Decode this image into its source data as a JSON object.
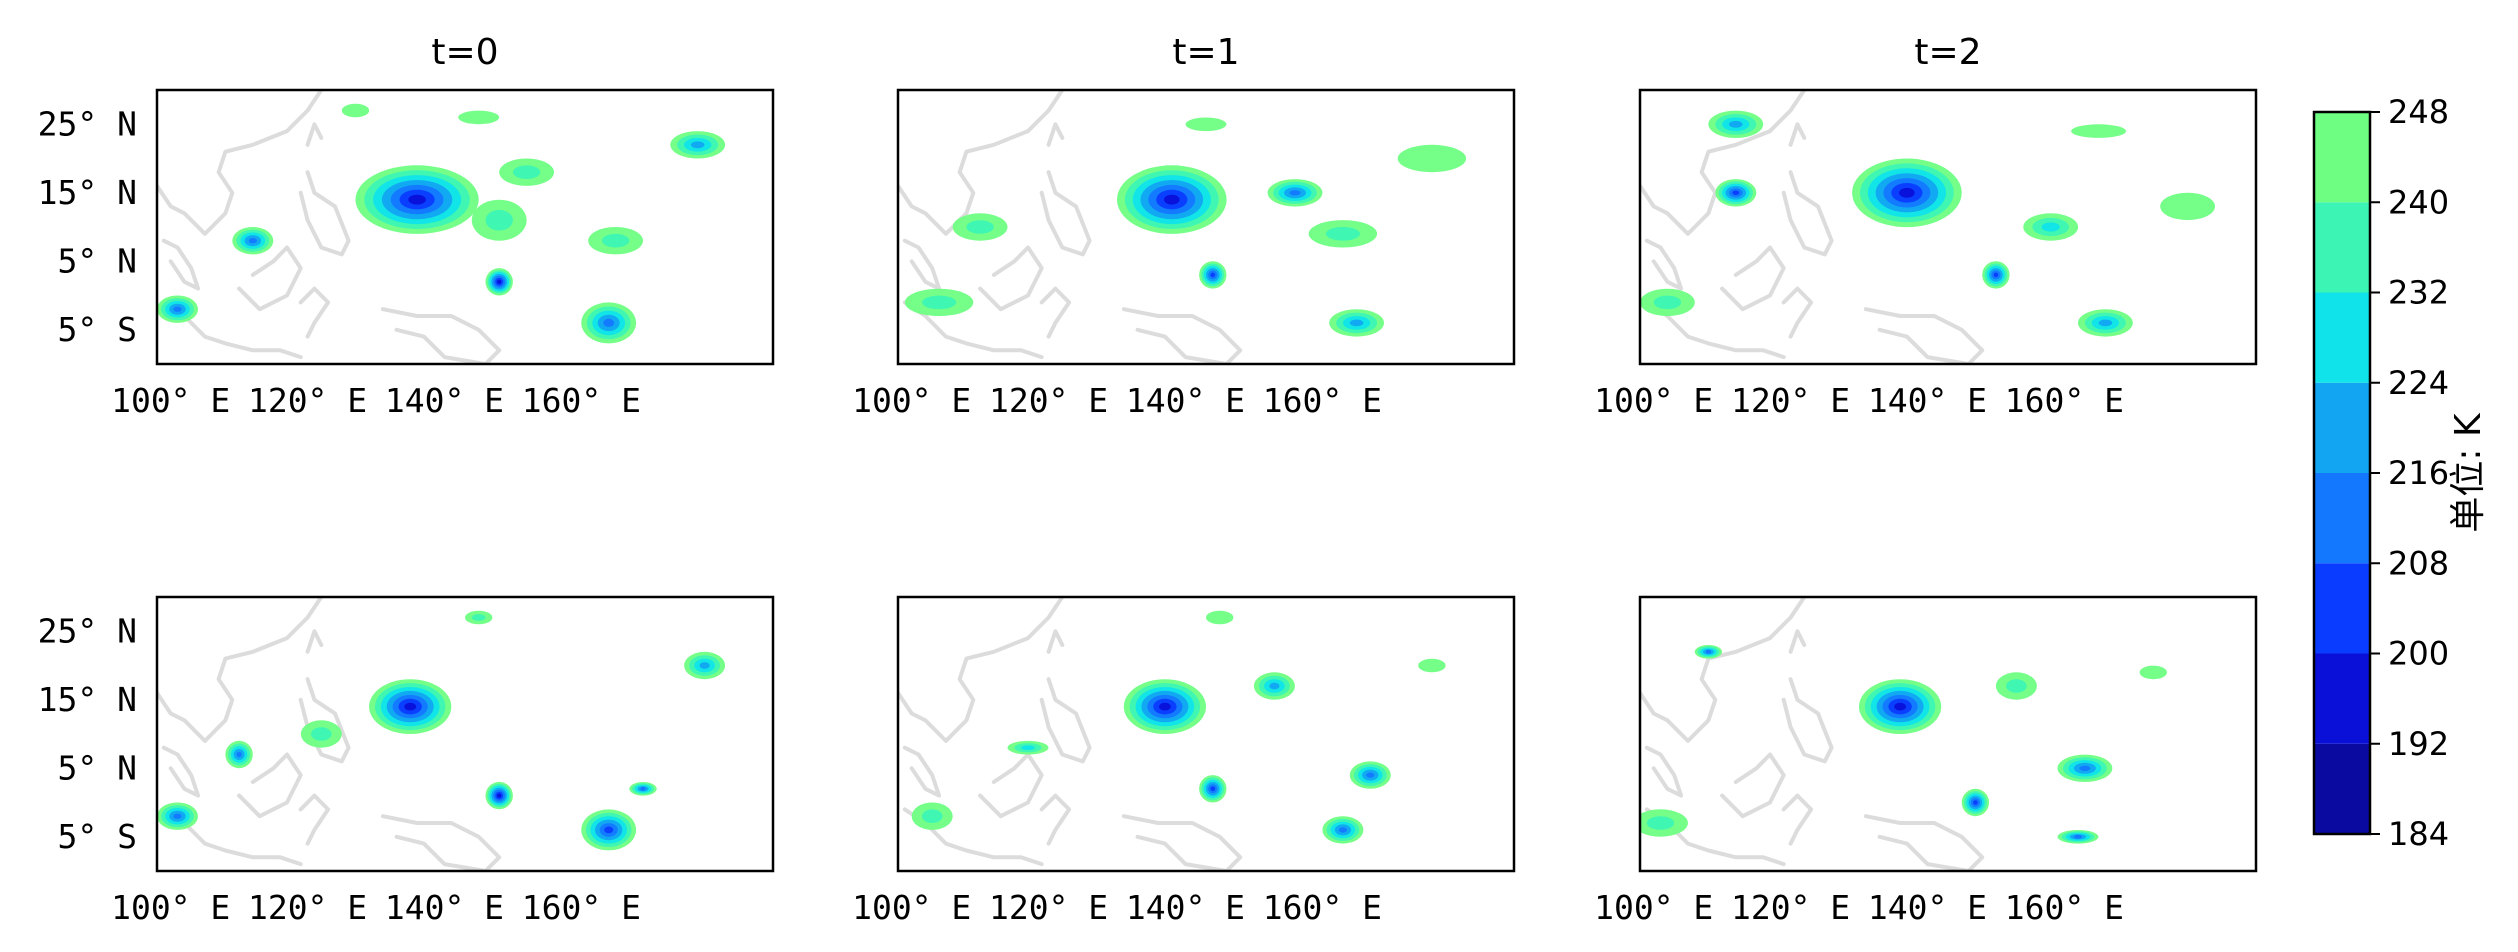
{
  "panels": [
    {
      "title": "t=0",
      "row": 0,
      "col": 0
    },
    {
      "title": "t=1",
      "row": 0,
      "col": 1
    },
    {
      "title": "t=2",
      "row": 0,
      "col": 2
    },
    {
      "title": "",
      "row": 1,
      "col": 0
    },
    {
      "title": "",
      "row": 1,
      "col": 1
    },
    {
      "title": "",
      "row": 1,
      "col": 2
    }
  ],
  "axis": {
    "x_ticks": [
      {
        "value": 100,
        "label": "100° E"
      },
      {
        "value": 120,
        "label": "120° E"
      },
      {
        "value": 140,
        "label": "140° E"
      },
      {
        "value": 160,
        "label": "160° E"
      }
    ],
    "y_ticks": [
      {
        "value": 25,
        "label": "25° N"
      },
      {
        "value": 15,
        "label": "15° N"
      },
      {
        "value": 5,
        "label": "5° N"
      },
      {
        "value": -5,
        "label": "5° S"
      }
    ],
    "lon_range": [
      98,
      188
    ],
    "lat_range": [
      -10,
      30
    ]
  },
  "colorbar": {
    "label": "单位: K",
    "levels": [
      184,
      192,
      200,
      208,
      216,
      224,
      232,
      240,
      248
    ],
    "colors": [
      "#0a0aa0",
      "#0a10d8",
      "#0a3cff",
      "#1478ff",
      "#12a6f2",
      "#10e4ea",
      "#3cf5b4",
      "#6eff82"
    ]
  },
  "clouds": [
    {
      "panel": 0,
      "lon": 136,
      "lat": 14,
      "rx": 9,
      "ry": 5,
      "level": 1
    },
    {
      "panel": 0,
      "lon": 112,
      "lat": 8,
      "rx": 3,
      "ry": 2,
      "level": 3
    },
    {
      "panel": 0,
      "lon": 101,
      "lat": -2,
      "rx": 3,
      "ry": 2,
      "level": 3
    },
    {
      "panel": 0,
      "lon": 148,
      "lat": 11,
      "rx": 4,
      "ry": 3,
      "level": 6
    },
    {
      "panel": 0,
      "lon": 152,
      "lat": 18,
      "rx": 4,
      "ry": 2,
      "level": 6
    },
    {
      "panel": 0,
      "lon": 148,
      "lat": 2,
      "rx": 2,
      "ry": 2,
      "level": 1
    },
    {
      "panel": 0,
      "lon": 164,
      "lat": -4,
      "rx": 4,
      "ry": 3,
      "level": 3
    },
    {
      "panel": 0,
      "lon": 177,
      "lat": 22,
      "rx": 4,
      "ry": 2,
      "level": 4
    },
    {
      "panel": 0,
      "lon": 127,
      "lat": 27,
      "rx": 2,
      "ry": 1,
      "level": 7
    },
    {
      "panel": 0,
      "lon": 145,
      "lat": 26,
      "rx": 3,
      "ry": 1,
      "level": 7
    },
    {
      "panel": 0,
      "lon": 165,
      "lat": 8,
      "rx": 4,
      "ry": 2,
      "level": 6
    },
    {
      "panel": 1,
      "lon": 138,
      "lat": 14,
      "rx": 8,
      "ry": 5,
      "level": 1
    },
    {
      "panel": 1,
      "lon": 144,
      "lat": 3,
      "rx": 2,
      "ry": 2,
      "level": 2
    },
    {
      "panel": 1,
      "lon": 110,
      "lat": 10,
      "rx": 4,
      "ry": 2,
      "level": 6
    },
    {
      "panel": 1,
      "lon": 104,
      "lat": -1,
      "rx": 5,
      "ry": 2,
      "level": 6
    },
    {
      "panel": 1,
      "lon": 156,
      "lat": 15,
      "rx": 4,
      "ry": 2,
      "level": 3
    },
    {
      "panel": 1,
      "lon": 165,
      "lat": -4,
      "rx": 4,
      "ry": 2,
      "level": 4
    },
    {
      "panel": 1,
      "lon": 176,
      "lat": 20,
      "rx": 5,
      "ry": 2,
      "level": 7
    },
    {
      "panel": 1,
      "lon": 163,
      "lat": 9,
      "rx": 5,
      "ry": 2,
      "level": 6
    },
    {
      "panel": 1,
      "lon": 143,
      "lat": 25,
      "rx": 3,
      "ry": 1,
      "level": 7
    },
    {
      "panel": 2,
      "lon": 137,
      "lat": 15,
      "rx": 8,
      "ry": 5,
      "level": 1
    },
    {
      "panel": 2,
      "lon": 112,
      "lat": 15,
      "rx": 3,
      "ry": 2,
      "level": 2
    },
    {
      "panel": 2,
      "lon": 102,
      "lat": -1,
      "rx": 4,
      "ry": 2,
      "level": 6
    },
    {
      "panel": 2,
      "lon": 150,
      "lat": 3,
      "rx": 2,
      "ry": 2,
      "level": 2
    },
    {
      "panel": 2,
      "lon": 158,
      "lat": 10,
      "rx": 4,
      "ry": 2,
      "level": 5
    },
    {
      "panel": 2,
      "lon": 166,
      "lat": -4,
      "rx": 4,
      "ry": 2,
      "level": 4
    },
    {
      "panel": 2,
      "lon": 112,
      "lat": 25,
      "rx": 4,
      "ry": 2,
      "level": 4
    },
    {
      "panel": 2,
      "lon": 178,
      "lat": 13,
      "rx": 4,
      "ry": 2,
      "level": 7
    },
    {
      "panel": 2,
      "lon": 165,
      "lat": 24,
      "rx": 4,
      "ry": 1,
      "level": 7
    },
    {
      "panel": 3,
      "lon": 135,
      "lat": 14,
      "rx": 6,
      "ry": 4,
      "level": 1
    },
    {
      "panel": 3,
      "lon": 110,
      "lat": 7,
      "rx": 2,
      "ry": 2,
      "level": 3
    },
    {
      "panel": 3,
      "lon": 101,
      "lat": -2,
      "rx": 3,
      "ry": 2,
      "level": 3
    },
    {
      "panel": 3,
      "lon": 145,
      "lat": 27,
      "rx": 2,
      "ry": 1,
      "level": 6
    },
    {
      "panel": 3,
      "lon": 148,
      "lat": 1,
      "rx": 2,
      "ry": 2,
      "level": 1
    },
    {
      "panel": 3,
      "lon": 164,
      "lat": -4,
      "rx": 4,
      "ry": 3,
      "level": 2
    },
    {
      "panel": 3,
      "lon": 178,
      "lat": 20,
      "rx": 3,
      "ry": 2,
      "level": 4
    },
    {
      "panel": 3,
      "lon": 122,
      "lat": 10,
      "rx": 3,
      "ry": 2,
      "level": 6
    },
    {
      "panel": 3,
      "lon": 169,
      "lat": 2,
      "rx": 2,
      "ry": 1,
      "level": 3
    },
    {
      "panel": 4,
      "lon": 137,
      "lat": 14,
      "rx": 6,
      "ry": 4,
      "level": 1
    },
    {
      "panel": 4,
      "lon": 144,
      "lat": 2,
      "rx": 2,
      "ry": 2,
      "level": 2
    },
    {
      "panel": 4,
      "lon": 103,
      "lat": -2,
      "rx": 3,
      "ry": 2,
      "level": 6
    },
    {
      "panel": 4,
      "lon": 145,
      "lat": 27,
      "rx": 2,
      "ry": 1,
      "level": 7
    },
    {
      "panel": 4,
      "lon": 167,
      "lat": 4,
      "rx": 3,
      "ry": 2,
      "level": 3
    },
    {
      "panel": 4,
      "lon": 163,
      "lat": -4,
      "rx": 3,
      "ry": 2,
      "level": 3
    },
    {
      "panel": 4,
      "lon": 153,
      "lat": 17,
      "rx": 3,
      "ry": 2,
      "level": 4
    },
    {
      "panel": 4,
      "lon": 117,
      "lat": 8,
      "rx": 3,
      "ry": 1,
      "level": 5
    },
    {
      "panel": 4,
      "lon": 176,
      "lat": 20,
      "rx": 2,
      "ry": 1,
      "level": 7
    },
    {
      "panel": 5,
      "lon": 136,
      "lat": 14,
      "rx": 6,
      "ry": 4,
      "level": 1
    },
    {
      "panel": 5,
      "lon": 153,
      "lat": 17,
      "rx": 3,
      "ry": 2,
      "level": 6
    },
    {
      "panel": 5,
      "lon": 101,
      "lat": -3,
      "rx": 4,
      "ry": 2,
      "level": 6
    },
    {
      "panel": 5,
      "lon": 147,
      "lat": 0,
      "rx": 2,
      "ry": 2,
      "level": 2
    },
    {
      "panel": 5,
      "lon": 163,
      "lat": 5,
      "rx": 4,
      "ry": 2,
      "level": 3
    },
    {
      "panel": 5,
      "lon": 162,
      "lat": -5,
      "rx": 3,
      "ry": 1,
      "level": 3
    },
    {
      "panel": 5,
      "lon": 108,
      "lat": 22,
      "rx": 2,
      "ry": 1,
      "level": 3
    },
    {
      "panel": 5,
      "lon": 173,
      "lat": 19,
      "rx": 2,
      "ry": 1,
      "level": 7
    }
  ]
}
